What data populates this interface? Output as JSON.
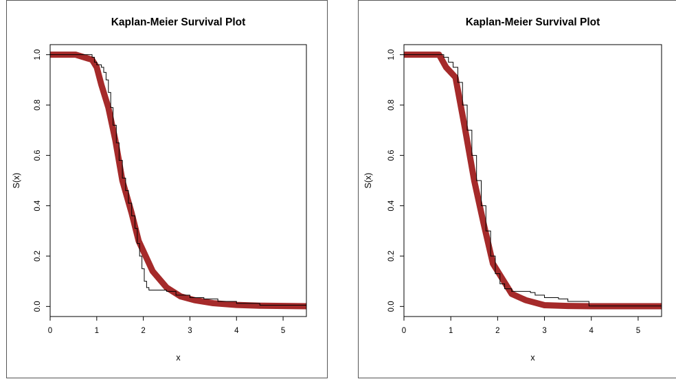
{
  "chart_data": [
    {
      "type": "line",
      "title": "Kaplan-Meier Survival Plot",
      "xlabel": "x",
      "ylabel": "S(x)",
      "xlim": [
        0,
        5.5
      ],
      "ylim": [
        -0.04,
        1.04
      ],
      "x_ticks": [
        "0",
        "1",
        "2",
        "3",
        "4",
        "5"
      ],
      "y_ticks": [
        "0.0",
        "0.2",
        "0.4",
        "0.6",
        "0.8",
        "1.0"
      ],
      "grid": false,
      "series": [
        {
          "color": "#a52a2a",
          "style": "thick-smooth",
          "points": [
            [
              0,
              1.0
            ],
            [
              0.55,
              1.0
            ],
            [
              0.9,
              0.98
            ],
            [
              1.0,
              0.95
            ],
            [
              1.1,
              0.88
            ],
            [
              1.25,
              0.79
            ],
            [
              1.4,
              0.66
            ],
            [
              1.55,
              0.5
            ],
            [
              1.75,
              0.37
            ],
            [
              1.9,
              0.26
            ],
            [
              2.05,
              0.2
            ],
            [
              2.2,
              0.14
            ],
            [
              2.5,
              0.075
            ],
            [
              2.8,
              0.04
            ],
            [
              3.1,
              0.025
            ],
            [
              3.5,
              0.013
            ],
            [
              4.0,
              0.006
            ],
            [
              4.5,
              0.003
            ],
            [
              5.5,
              0.001
            ]
          ]
        },
        {
          "color": "#000000",
          "style": "step-thin",
          "points": [
            [
              0,
              1.0
            ],
            [
              0.85,
              1.0
            ],
            [
              0.9,
              0.99
            ],
            [
              0.95,
              0.97
            ],
            [
              1.0,
              0.96
            ],
            [
              1.1,
              0.95
            ],
            [
              1.15,
              0.93
            ],
            [
              1.2,
              0.9
            ],
            [
              1.25,
              0.85
            ],
            [
              1.3,
              0.79
            ],
            [
              1.35,
              0.72
            ],
            [
              1.42,
              0.65
            ],
            [
              1.48,
              0.58
            ],
            [
              1.55,
              0.51
            ],
            [
              1.62,
              0.46
            ],
            [
              1.68,
              0.41
            ],
            [
              1.75,
              0.36
            ],
            [
              1.82,
              0.31
            ],
            [
              1.87,
              0.25
            ],
            [
              1.92,
              0.2
            ],
            [
              1.97,
              0.15
            ],
            [
              2.02,
              0.1
            ],
            [
              2.07,
              0.075
            ],
            [
              2.12,
              0.065
            ],
            [
              2.5,
              0.06
            ],
            [
              2.7,
              0.045
            ],
            [
              3.0,
              0.035
            ],
            [
              3.3,
              0.03
            ],
            [
              3.6,
              0.02
            ],
            [
              4.0,
              0.012
            ],
            [
              4.5,
              0.005
            ],
            [
              5.5,
              0.005
            ]
          ]
        }
      ]
    },
    {
      "type": "line",
      "title": "Kaplan-Meier Survival Plot",
      "xlabel": "x",
      "ylabel": "S(x)",
      "xlim": [
        0,
        5.5
      ],
      "ylim": [
        -0.04,
        1.04
      ],
      "x_ticks": [
        "0",
        "1",
        "2",
        "3",
        "4",
        "5"
      ],
      "y_ticks": [
        "0.0",
        "0.2",
        "0.4",
        "0.6",
        "0.8",
        "1.0"
      ],
      "grid": false,
      "series": [
        {
          "color": "#a52a2a",
          "style": "thick-smooth",
          "points": [
            [
              0,
              1.0
            ],
            [
              0.75,
              1.0
            ],
            [
              0.9,
              0.95
            ],
            [
              1.1,
              0.91
            ],
            [
              1.3,
              0.71
            ],
            [
              1.5,
              0.5
            ],
            [
              1.7,
              0.33
            ],
            [
              1.9,
              0.17
            ],
            [
              2.1,
              0.11
            ],
            [
              2.3,
              0.05
            ],
            [
              2.6,
              0.025
            ],
            [
              3.0,
              0.005
            ],
            [
              3.5,
              0.002
            ],
            [
              4.0,
              0.001
            ],
            [
              5.5,
              0.001
            ]
          ]
        },
        {
          "color": "#000000",
          "style": "step-thin",
          "points": [
            [
              0,
              1.0
            ],
            [
              0.75,
              1.0
            ],
            [
              0.85,
              0.99
            ],
            [
              0.95,
              0.97
            ],
            [
              1.05,
              0.95
            ],
            [
              1.15,
              0.89
            ],
            [
              1.25,
              0.8
            ],
            [
              1.35,
              0.7
            ],
            [
              1.45,
              0.6
            ],
            [
              1.55,
              0.5
            ],
            [
              1.65,
              0.4
            ],
            [
              1.75,
              0.3
            ],
            [
              1.85,
              0.2
            ],
            [
              1.95,
              0.13
            ],
            [
              2.05,
              0.09
            ],
            [
              2.15,
              0.07
            ],
            [
              2.3,
              0.06
            ],
            [
              2.7,
              0.055
            ],
            [
              2.8,
              0.045
            ],
            [
              3.0,
              0.035
            ],
            [
              3.3,
              0.03
            ],
            [
              3.5,
              0.02
            ],
            [
              3.9,
              0.02
            ],
            [
              3.95,
              0.002
            ],
            [
              5.5,
              0.002
            ]
          ]
        }
      ]
    }
  ]
}
